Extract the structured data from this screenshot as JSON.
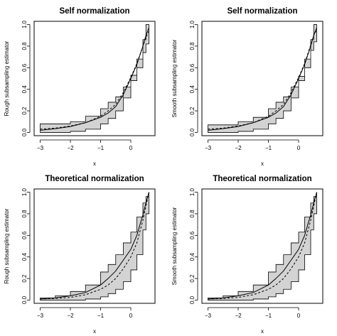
{
  "chart_data": [
    {
      "type": "line",
      "title": "Self normalization",
      "xlabel": "x",
      "ylabel": "Rough subsampling estimator",
      "xlim": [
        -3.2,
        0.8
      ],
      "ylim": [
        -0.03,
        1.03
      ],
      "xticks": [
        -3,
        -2,
        -1,
        0
      ],
      "yticks": [
        0.0,
        0.2,
        0.4,
        0.6,
        0.8,
        1.0
      ],
      "xtick_labels": [
        "−3",
        "−2",
        "−1",
        "0"
      ],
      "ytick_labels": [
        "0.0",
        "0.2",
        "0.4",
        "0.6",
        "0.8",
        "1.0"
      ],
      "grid": false,
      "band": {
        "x": [
          -3.0,
          -2.5,
          -2.0,
          -1.5,
          -1.0,
          -0.75,
          -0.5,
          -0.25,
          0.0,
          0.2,
          0.4,
          0.5,
          0.6
        ],
        "lower": [
          0.0,
          0.0,
          0.01,
          0.03,
          0.08,
          0.13,
          0.2,
          0.32,
          0.48,
          0.6,
          0.74,
          0.82,
          0.85
        ],
        "upper": [
          0.08,
          0.08,
          0.1,
          0.15,
          0.22,
          0.28,
          0.33,
          0.42,
          0.53,
          0.68,
          0.86,
          1.0,
          1.0
        ]
      },
      "series": [
        {
          "style": "solid",
          "x": [
            -3.0,
            -2.5,
            -2.0,
            -1.5,
            -1.0,
            -0.75,
            -0.5,
            -0.25,
            0.0,
            0.2,
            0.4,
            0.5,
            0.6
          ],
          "values": [
            0.02,
            0.035,
            0.055,
            0.09,
            0.14,
            0.18,
            0.24,
            0.35,
            0.5,
            0.63,
            0.8,
            0.9,
            0.97
          ]
        },
        {
          "style": "dashed",
          "x": [
            -3.0,
            -2.5,
            -2.0,
            -1.5,
            -1.0,
            -0.75,
            -0.5,
            -0.25,
            0.0,
            0.2,
            0.4,
            0.5,
            0.6
          ],
          "values": [
            0.03,
            0.04,
            0.06,
            0.09,
            0.15,
            0.2,
            0.26,
            0.37,
            0.51,
            0.64,
            0.8,
            0.88,
            0.94
          ]
        }
      ]
    },
    {
      "type": "line",
      "title": "Self normalization",
      "xlabel": "x",
      "ylabel": "Smooth subsampling estimator",
      "xlim": [
        -3.2,
        0.8
      ],
      "ylim": [
        -0.03,
        1.03
      ],
      "xticks": [
        -3,
        -2,
        -1,
        0
      ],
      "yticks": [
        0.0,
        0.2,
        0.4,
        0.6,
        0.8,
        1.0
      ],
      "xtick_labels": [
        "−3",
        "−2",
        "−1",
        "0"
      ],
      "ytick_labels": [
        "0.0",
        "0.2",
        "0.4",
        "0.6",
        "0.8",
        "1.0"
      ],
      "grid": false,
      "band": {
        "x": [
          -3.0,
          -2.5,
          -2.0,
          -1.5,
          -1.0,
          -0.75,
          -0.5,
          -0.25,
          0.0,
          0.2,
          0.4,
          0.5,
          0.6
        ],
        "lower": [
          0.0,
          0.0,
          0.01,
          0.03,
          0.08,
          0.13,
          0.2,
          0.32,
          0.48,
          0.6,
          0.76,
          0.84,
          0.88
        ],
        "upper": [
          0.07,
          0.07,
          0.1,
          0.14,
          0.22,
          0.28,
          0.33,
          0.42,
          0.52,
          0.68,
          0.86,
          1.0,
          1.0
        ]
      },
      "series": [
        {
          "style": "solid",
          "x": [
            -3.0,
            -2.5,
            -2.0,
            -1.5,
            -1.0,
            -0.75,
            -0.5,
            -0.25,
            0.0,
            0.2,
            0.4,
            0.5,
            0.6
          ],
          "values": [
            0.02,
            0.035,
            0.055,
            0.09,
            0.14,
            0.18,
            0.24,
            0.35,
            0.5,
            0.63,
            0.8,
            0.9,
            0.97
          ]
        },
        {
          "style": "dashed",
          "x": [
            -3.0,
            -2.5,
            -2.0,
            -1.5,
            -1.0,
            -0.75,
            -0.5,
            -0.25,
            0.0,
            0.2,
            0.4,
            0.5,
            0.6
          ],
          "values": [
            0.03,
            0.04,
            0.06,
            0.09,
            0.15,
            0.2,
            0.26,
            0.37,
            0.51,
            0.64,
            0.81,
            0.9,
            0.95
          ]
        }
      ]
    },
    {
      "type": "line",
      "title": "Theoretical normalization",
      "xlabel": "x",
      "ylabel": "Rough subsampling estimator",
      "xlim": [
        -3.2,
        0.8
      ],
      "ylim": [
        -0.03,
        1.03
      ],
      "xticks": [
        -3,
        -2,
        -1,
        0
      ],
      "yticks": [
        0.0,
        0.2,
        0.4,
        0.6,
        0.8,
        1.0
      ],
      "xtick_labels": [
        "−3",
        "−2",
        "−1",
        "0"
      ],
      "ytick_labels": [
        "0.0",
        "0.2",
        "0.4",
        "0.6",
        "0.8",
        "1.0"
      ],
      "grid": false,
      "band": {
        "x": [
          -3.0,
          -2.5,
          -2.0,
          -1.5,
          -1.0,
          -0.75,
          -0.5,
          -0.25,
          0.0,
          0.2,
          0.4,
          0.5,
          0.6
        ],
        "lower": [
          0.0,
          0.0,
          0.0,
          0.01,
          0.03,
          0.06,
          0.1,
          0.17,
          0.28,
          0.42,
          0.65,
          0.8,
          0.97
        ],
        "upper": [
          0.02,
          0.04,
          0.08,
          0.14,
          0.26,
          0.33,
          0.42,
          0.53,
          0.63,
          0.77,
          0.9,
          0.96,
          1.0
        ]
      },
      "series": [
        {
          "style": "solid",
          "x": [
            -3.0,
            -2.5,
            -2.0,
            -1.5,
            -1.0,
            -0.75,
            -0.5,
            -0.25,
            0.0,
            0.2,
            0.4,
            0.5,
            0.6
          ],
          "values": [
            0.01,
            0.02,
            0.04,
            0.07,
            0.14,
            0.2,
            0.27,
            0.37,
            0.47,
            0.6,
            0.79,
            0.9,
            1.0
          ]
        },
        {
          "style": "dashed",
          "x": [
            -3.0,
            -2.5,
            -2.0,
            -1.5,
            -1.0,
            -0.75,
            -0.5,
            -0.25,
            0.0,
            0.2,
            0.4,
            0.5,
            0.6
          ],
          "values": [
            0.01,
            0.015,
            0.025,
            0.05,
            0.1,
            0.14,
            0.2,
            0.29,
            0.4,
            0.53,
            0.74,
            0.87,
            1.0
          ]
        }
      ]
    },
    {
      "type": "line",
      "title": "Theoretical normalization",
      "xlabel": "x",
      "ylabel": "Smooth subsampling estimator",
      "xlim": [
        -3.2,
        0.8
      ],
      "ylim": [
        -0.03,
        1.03
      ],
      "xticks": [
        -3,
        -2,
        -1,
        0
      ],
      "yticks": [
        0.0,
        0.2,
        0.4,
        0.6,
        0.8,
        1.0
      ],
      "xtick_labels": [
        "−3",
        "−2",
        "−1",
        "0"
      ],
      "ytick_labels": [
        "0.0",
        "0.2",
        "0.4",
        "0.6",
        "0.8",
        "1.0"
      ],
      "grid": false,
      "band": {
        "x": [
          -3.0,
          -2.5,
          -2.0,
          -1.5,
          -1.0,
          -0.75,
          -0.5,
          -0.25,
          0.0,
          0.2,
          0.4,
          0.5,
          0.6
        ],
        "lower": [
          0.0,
          0.0,
          0.0,
          0.01,
          0.03,
          0.06,
          0.1,
          0.17,
          0.28,
          0.42,
          0.65,
          0.8,
          0.97
        ],
        "upper": [
          0.02,
          0.04,
          0.08,
          0.14,
          0.26,
          0.33,
          0.42,
          0.53,
          0.63,
          0.77,
          0.9,
          0.96,
          1.0
        ]
      },
      "series": [
        {
          "style": "solid",
          "x": [
            -3.0,
            -2.5,
            -2.0,
            -1.5,
            -1.0,
            -0.75,
            -0.5,
            -0.25,
            0.0,
            0.2,
            0.4,
            0.5,
            0.6
          ],
          "values": [
            0.01,
            0.02,
            0.04,
            0.07,
            0.14,
            0.2,
            0.27,
            0.37,
            0.47,
            0.6,
            0.79,
            0.9,
            1.0
          ]
        },
        {
          "style": "dashed",
          "x": [
            -3.0,
            -2.5,
            -2.0,
            -1.5,
            -1.0,
            -0.75,
            -0.5,
            -0.25,
            0.0,
            0.2,
            0.4,
            0.5,
            0.6
          ],
          "values": [
            0.01,
            0.015,
            0.025,
            0.05,
            0.1,
            0.14,
            0.2,
            0.29,
            0.4,
            0.53,
            0.74,
            0.87,
            1.0
          ]
        }
      ]
    }
  ],
  "colors": {
    "band_fill": "#d3d3d3",
    "line": "#000000",
    "background": "#ffffff"
  }
}
